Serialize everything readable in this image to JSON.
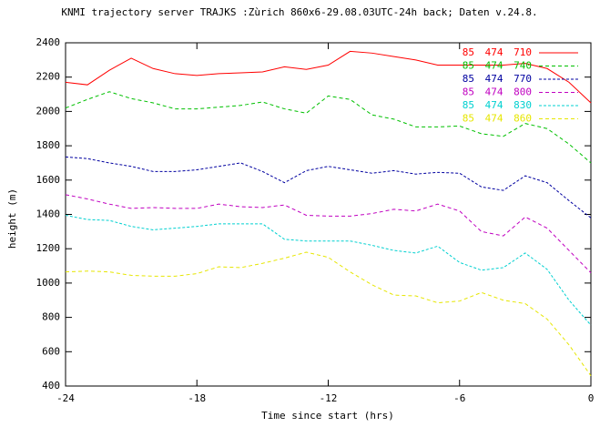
{
  "chart_data": {
    "type": "line",
    "title": "KNMI trajectory server TRAJKS :Zùrich 860x6-29.08.03UTC-24h back; Daten v.24.8.",
    "x_label": "Time since start (hrs)",
    "y_label": "height (m)",
    "x": [
      -24,
      -23,
      -22,
      -21,
      -20,
      -19,
      -18,
      -17,
      -16,
      -15,
      -14,
      -13,
      -12,
      -11,
      -10,
      -9,
      -8,
      -7,
      -6,
      -5,
      -4,
      -3,
      -2,
      -1,
      0
    ],
    "xlim": [
      -24,
      0
    ],
    "xticks": [
      -24,
      -18,
      -12,
      -6,
      0
    ],
    "ylim": [
      400,
      2400
    ],
    "yticks": [
      400,
      600,
      800,
      1000,
      1200,
      1400,
      1600,
      1800,
      2000,
      2200,
      2400
    ],
    "legend": "upper right",
    "series": [
      {
        "name": "85 474 710",
        "color": "#ff0000",
        "values": [
          2170,
          2155,
          2240,
          2310,
          2250,
          2220,
          2210,
          2220,
          2225,
          2230,
          2260,
          2245,
          2270,
          2350,
          2340,
          2320,
          2300,
          2270,
          2270,
          2270,
          2270,
          2280,
          2250,
          2170,
          2050
        ]
      },
      {
        "name": "85 474 740",
        "color": "#00c000",
        "values": [
          2020,
          2070,
          2115,
          2075,
          2050,
          2015,
          2015,
          2025,
          2035,
          2055,
          2015,
          1990,
          2090,
          2070,
          1980,
          1955,
          1910,
          1910,
          1915,
          1870,
          1855,
          1930,
          1900,
          1810,
          1700
        ]
      },
      {
        "name": "85 474 770",
        "color": "#0000a0",
        "values": [
          1735,
          1725,
          1700,
          1680,
          1650,
          1650,
          1660,
          1680,
          1700,
          1650,
          1585,
          1655,
          1680,
          1660,
          1640,
          1655,
          1635,
          1645,
          1640,
          1560,
          1540,
          1625,
          1585,
          1480,
          1380
        ]
      },
      {
        "name": "85 474 800",
        "color": "#c000c0",
        "values": [
          1515,
          1490,
          1460,
          1435,
          1440,
          1435,
          1435,
          1460,
          1445,
          1440,
          1455,
          1395,
          1390,
          1390,
          1405,
          1430,
          1420,
          1460,
          1420,
          1300,
          1275,
          1385,
          1320,
          1190,
          1060
        ]
      },
      {
        "name": "85 474 830",
        "color": "#00d0d0",
        "values": [
          1395,
          1370,
          1365,
          1330,
          1310,
          1320,
          1330,
          1345,
          1345,
          1345,
          1255,
          1245,
          1245,
          1245,
          1220,
          1190,
          1175,
          1215,
          1120,
          1075,
          1090,
          1175,
          1080,
          900,
          755
        ]
      },
      {
        "name": "85 474 860",
        "color": "#e6e600",
        "values": [
          1065,
          1070,
          1065,
          1045,
          1040,
          1040,
          1055,
          1095,
          1090,
          1115,
          1145,
          1180,
          1150,
          1065,
          990,
          930,
          925,
          885,
          895,
          945,
          900,
          880,
          790,
          640,
          460
        ]
      }
    ]
  }
}
